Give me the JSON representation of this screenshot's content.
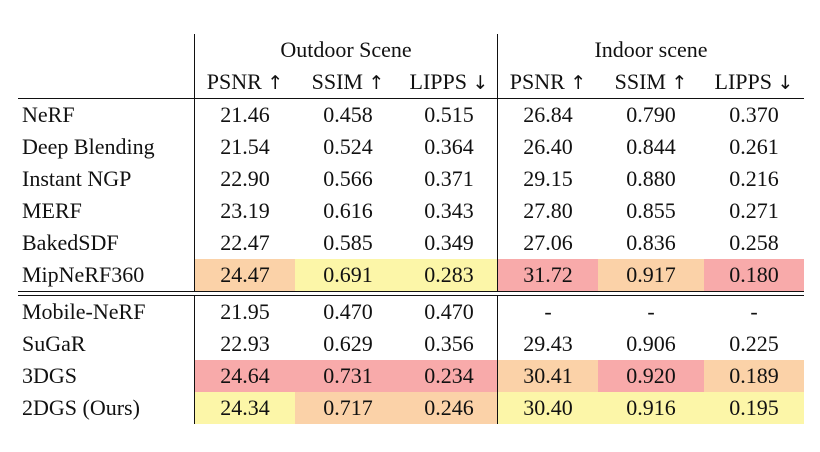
{
  "groups": [
    "Outdoor Scene",
    "Indoor scene"
  ],
  "metrics": [
    "PSNR",
    "SSIM",
    "LIPPS",
    "PSNR",
    "SSIM",
    "LIPPS"
  ],
  "metric_arrows": [
    "↑",
    "↑",
    "↓",
    "↑",
    "↑",
    "↓"
  ],
  "colors": {
    "best": "#f8aaaa",
    "second": "#fbd2a8",
    "third": "#fcf6a8"
  },
  "section1": [
    {
      "method": "NeRF",
      "values": [
        "21.46",
        "0.458",
        "0.515",
        "26.84",
        "0.790",
        "0.370"
      ],
      "ranks": [
        0,
        0,
        0,
        0,
        0,
        0
      ]
    },
    {
      "method": "Deep Blending",
      "values": [
        "21.54",
        "0.524",
        "0.364",
        "26.40",
        "0.844",
        "0.261"
      ],
      "ranks": [
        0,
        0,
        0,
        0,
        0,
        0
      ]
    },
    {
      "method": "Instant NGP",
      "values": [
        "22.90",
        "0.566",
        "0.371",
        "29.15",
        "0.880",
        "0.216"
      ],
      "ranks": [
        0,
        0,
        0,
        0,
        0,
        0
      ]
    },
    {
      "method": "MERF",
      "values": [
        "23.19",
        "0.616",
        "0.343",
        "27.80",
        "0.855",
        "0.271"
      ],
      "ranks": [
        0,
        0,
        0,
        0,
        0,
        0
      ]
    },
    {
      "method": "BakedSDF",
      "values": [
        "22.47",
        "0.585",
        "0.349",
        "27.06",
        "0.836",
        "0.258"
      ],
      "ranks": [
        0,
        0,
        0,
        0,
        0,
        0
      ]
    },
    {
      "method": "MipNeRF360",
      "values": [
        "24.47",
        "0.691",
        "0.283",
        "31.72",
        "0.917",
        "0.180"
      ],
      "ranks": [
        2,
        3,
        3,
        1,
        2,
        1
      ]
    }
  ],
  "section2": [
    {
      "method": "Mobile-NeRF",
      "values": [
        "21.95",
        "0.470",
        "0.470",
        "-",
        "-",
        "-"
      ],
      "ranks": [
        0,
        0,
        0,
        0,
        0,
        0
      ]
    },
    {
      "method": "SuGaR",
      "values": [
        "22.93",
        "0.629",
        "0.356",
        "29.43",
        "0.906",
        "0.225"
      ],
      "ranks": [
        0,
        0,
        0,
        0,
        0,
        0
      ]
    },
    {
      "method": "3DGS",
      "values": [
        "24.64",
        "0.731",
        "0.234",
        "30.41",
        "0.920",
        "0.189"
      ],
      "ranks": [
        1,
        1,
        1,
        2,
        1,
        2
      ]
    },
    {
      "method": "2DGS (Ours)",
      "values": [
        "24.34",
        "0.717",
        "0.246",
        "30.40",
        "0.916",
        "0.195"
      ],
      "ranks": [
        3,
        2,
        2,
        3,
        3,
        3
      ]
    }
  ]
}
